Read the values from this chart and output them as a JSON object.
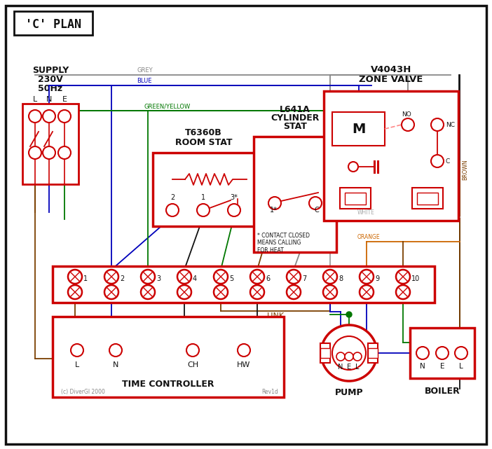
{
  "red": "#cc0000",
  "blue": "#0000bb",
  "green": "#007700",
  "grey": "#888888",
  "brown": "#7B3F00",
  "orange": "#cc6600",
  "black": "#111111",
  "title": "'C' PLAN",
  "zone_valve_title1": "V4043H",
  "zone_valve_title2": "ZONE VALVE",
  "supply_line1": "SUPPLY",
  "supply_line2": "230V",
  "supply_line3": "50Hz",
  "room_stat_t1": "T6360B",
  "room_stat_t2": "ROOM STAT",
  "cyl_stat_t1": "L641A",
  "cyl_stat_t2": "CYLINDER",
  "cyl_stat_t3": "STAT",
  "time_ctrl_title": "TIME CONTROLLER",
  "pump_title": "PUMP",
  "boiler_title": "BOILER",
  "footnote": "* CONTACT CLOSED\nMEANS CALLING\nFOR HEAT",
  "copyright": "(c) DiverGl 2000",
  "rev": "Rev1d"
}
